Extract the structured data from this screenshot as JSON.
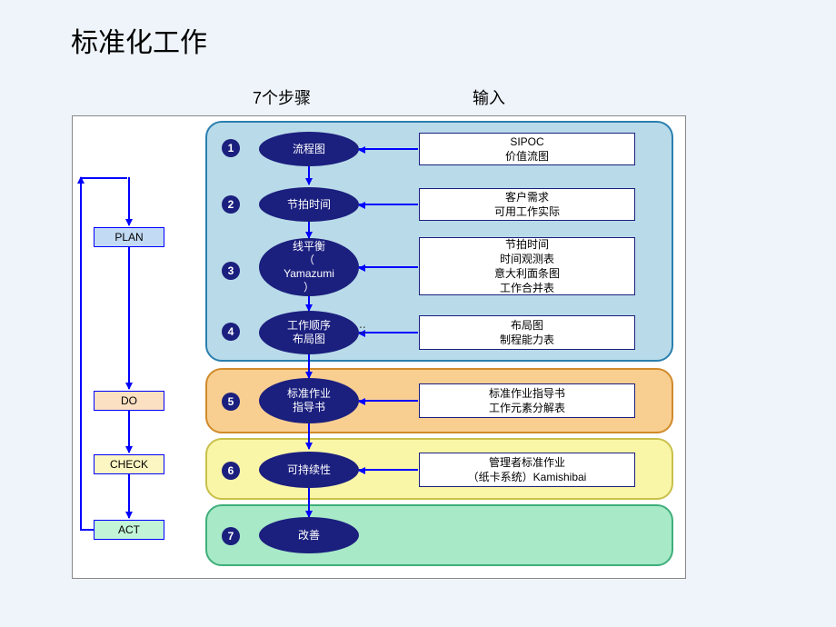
{
  "title": "标准化工作",
  "columns": {
    "steps": "7个步骤",
    "inputs": "输入"
  },
  "pdca": {
    "plan": {
      "label": "PLAN",
      "bg": "#c2daf4"
    },
    "do": {
      "label": "DO",
      "bg": "#fce0c2"
    },
    "check": {
      "label": "CHECK",
      "bg": "#fcf6c2"
    },
    "act": {
      "label": "ACT",
      "bg": "#c2f4d8"
    }
  },
  "phases": {
    "plan": {
      "bg": "#b9dbe9",
      "border": "#2a7fae"
    },
    "do": {
      "bg": "#f9cf91",
      "border": "#d08a2a"
    },
    "check": {
      "bg": "#f9f6a8",
      "border": "#c9c04a"
    },
    "act": {
      "bg": "#a8e9c8",
      "border": "#3fae7a"
    }
  },
  "colors": {
    "ellipse": "#1b1f7e",
    "arrow": "#0000ff",
    "page_bg": "#eef4fa"
  },
  "rows": [
    {
      "phase": "plan",
      "n": "1",
      "step": "流程图",
      "input": "SIPOC\n价值流图"
    },
    {
      "phase": "plan",
      "n": "2",
      "step": "节拍时间",
      "input": "客户需求\n可用工作实际"
    },
    {
      "phase": "plan",
      "n": "3",
      "step": "线平衡\n（\nYamazumi\n）",
      "input": "节拍时间\n时间观测表\n意大利面条图\n工作合并表"
    },
    {
      "phase": "plan",
      "n": "4",
      "step": "工作顺序\n布局图",
      "input": "布局图\n制程能力表"
    },
    {
      "phase": "do",
      "n": "5",
      "step": "标准作业\n指导书",
      "input": "标准作业指导书\n工作元素分解表"
    },
    {
      "phase": "check",
      "n": "6",
      "step": "可持续性",
      "input": "管理者标准作业\n（纸卡系统）Kamishibai"
    },
    {
      "phase": "act",
      "n": "7",
      "step": "改善",
      "input": ""
    }
  ],
  "misc": {
    "dot": "::"
  }
}
